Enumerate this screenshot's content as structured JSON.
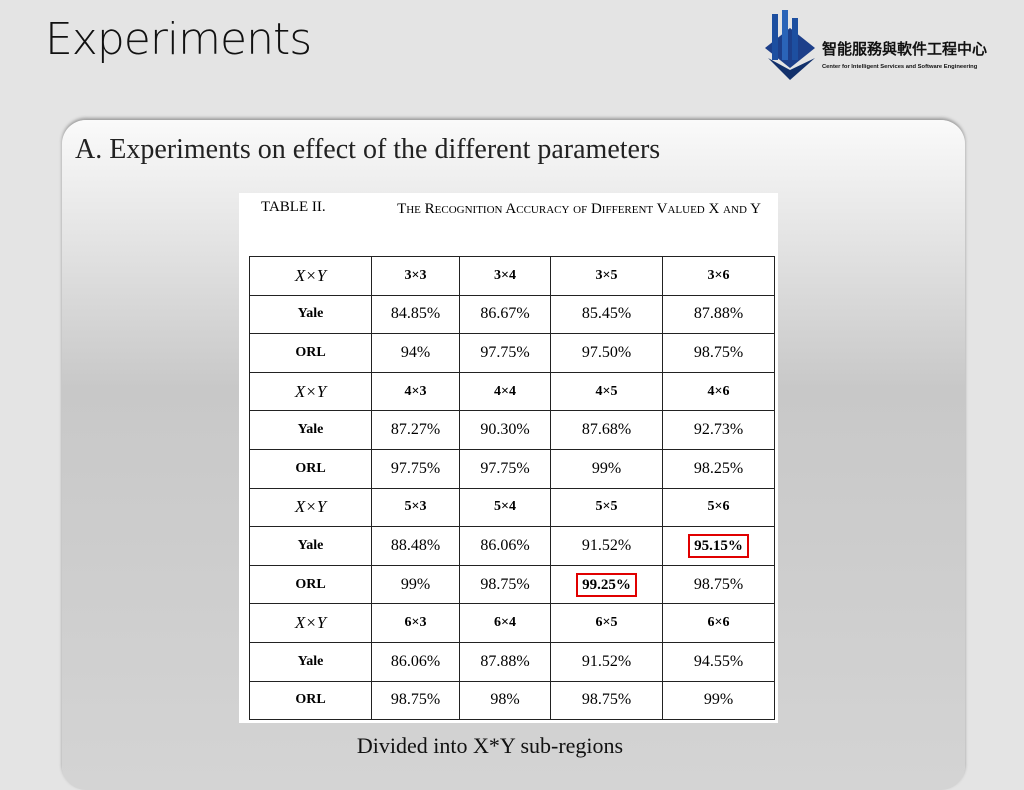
{
  "header": {
    "title": "Experiments",
    "logo_name_zh": "智能服務與軟件工程中心",
    "logo_name_en": "Center for Intelligent Services and Software Engineering"
  },
  "section": {
    "title": "A. Experiments on effect of the different parameters"
  },
  "table": {
    "label": "TABLE II.",
    "caption": "The Recognition Accuracy of Different Valued X and Y",
    "rows": [
      [
        "X×Y",
        "3×3",
        "3×4",
        "3×5",
        "3×6"
      ],
      [
        "Yale",
        "84.85%",
        "86.67%",
        "85.45%",
        "87.88%"
      ],
      [
        "ORL",
        "94%",
        "97.75%",
        "97.50%",
        "98.75%"
      ],
      [
        "X×Y",
        "4×3",
        "4×4",
        "4×5",
        "4×6"
      ],
      [
        "Yale",
        "87.27%",
        "90.30%",
        "87.68%",
        "92.73%"
      ],
      [
        "ORL",
        "97.75%",
        "97.75%",
        "99%",
        "98.25%"
      ],
      [
        "X×Y",
        "5×3",
        "5×4",
        "5×5",
        "5×6"
      ],
      [
        "Yale",
        "88.48%",
        "86.06%",
        "91.52%",
        "95.15%"
      ],
      [
        "ORL",
        "99%",
        "98.75%",
        "99.25%",
        "98.75%"
      ],
      [
        "X×Y",
        "6×3",
        "6×4",
        "6×5",
        "6×6"
      ],
      [
        "Yale",
        "86.06%",
        "87.88%",
        "91.52%",
        "94.55%"
      ],
      [
        "ORL",
        "98.75%",
        "98%",
        "98.75%",
        "99%"
      ]
    ]
  },
  "footer": {
    "note": "Divided into X*Y sub-regions"
  }
}
